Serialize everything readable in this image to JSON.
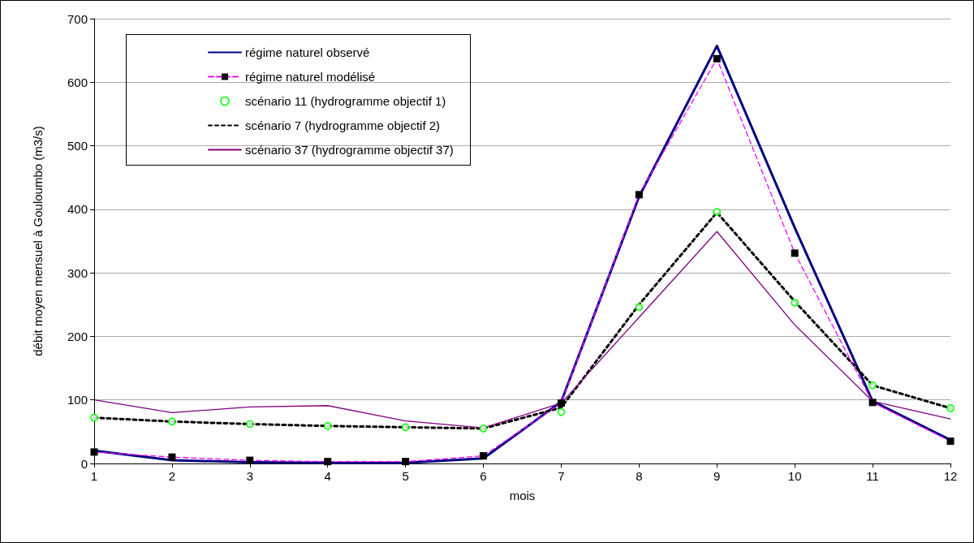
{
  "chart_data": {
    "type": "line",
    "xlabel": "mois",
    "ylabel": "débit moyen mensuel à Gouloumbo (m3/s)",
    "x": [
      1,
      2,
      3,
      4,
      5,
      6,
      7,
      8,
      9,
      10,
      11,
      12
    ],
    "xlim": [
      1,
      12
    ],
    "xticks": [
      1,
      2,
      3,
      4,
      5,
      6,
      7,
      8,
      9,
      10,
      11,
      12
    ],
    "ylim": [
      0,
      700
    ],
    "yticks": [
      0,
      100,
      200,
      300,
      400,
      500,
      600,
      700
    ],
    "grid": "y",
    "legend": "top left",
    "series": [
      {
        "name": "régime naturel observé",
        "color": "#000080",
        "line_style": "solid",
        "marker": "none",
        "values": [
          20,
          5,
          2,
          1,
          1,
          8,
          97,
          420,
          657,
          371,
          98,
          37
        ]
      },
      {
        "name": "régime naturel modélisé",
        "color": "#ff00ff",
        "colors": [
          "#000000",
          "#000000",
          "#000000",
          "#000000",
          "#000000",
          "#000000",
          "#000000",
          "#000000",
          "#000000",
          "#000000",
          "#000000",
          "#000000"
        ],
        "line_style": "dashed",
        "marker": "square",
        "values": [
          18,
          10,
          5,
          3,
          3,
          12,
          95,
          423,
          637,
          331,
          96,
          35
        ]
      },
      {
        "name": "scénario 11 (hydrogramme objectif 1)",
        "type": "scatter",
        "color": "#00ff00",
        "marker": "circle",
        "values": [
          72,
          66,
          62,
          59,
          57,
          55,
          81,
          246,
          396,
          253,
          123,
          87
        ]
      },
      {
        "name": "scénario 7 (hydrogramme objectif 2)",
        "color": "#000000",
        "line_style": "dotted",
        "marker": "none",
        "values": [
          72,
          66,
          62,
          59,
          57,
          55,
          88,
          250,
          395,
          255,
          123,
          87
        ]
      },
      {
        "name": "scénario 37 (hydrogramme objectif 37)",
        "color": "#800080",
        "line_style": "solid",
        "marker": "none",
        "values": [
          100,
          80,
          89,
          91,
          67,
          56,
          95,
          230,
          365,
          218,
          98,
          70
        ]
      }
    ]
  }
}
